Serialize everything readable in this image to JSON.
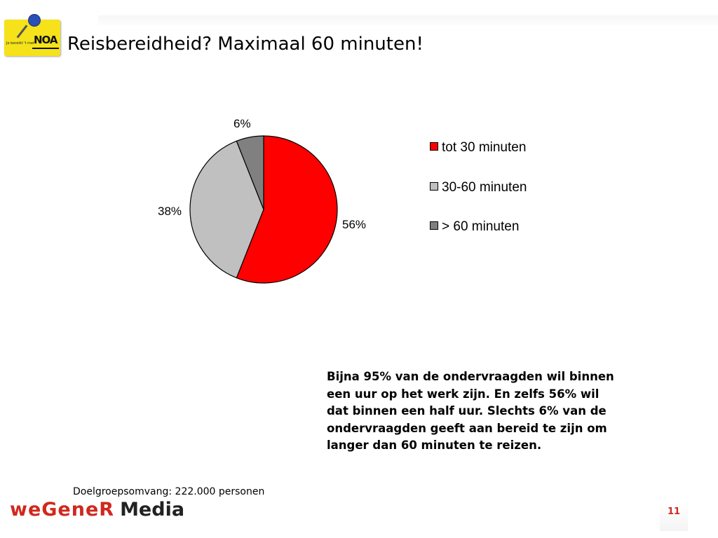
{
  "slide": {
    "title": "Reisbereidheid? Maximaal 60 minuten!",
    "note": "Bijna 95% van de ondervraagden wil binnen een uur op het werk zijn. En zelfs 56% wil dat binnen een half uur. Slechts 6% van de ondervraagden geeft aan bereid te zijn om langer dan 60 minuten te reizen.",
    "footer_note": "Doelgroepsomvang: 222.000 personen",
    "page_number": "11"
  },
  "logo": {
    "brand": "NOA",
    "tagline": "Je bereikt 't met"
  },
  "footer_logo": {
    "word1": "weGeneR",
    "word2": "Media"
  },
  "chart_data": {
    "type": "pie",
    "title": "",
    "categories": [
      "tot 30 minuten",
      "30-60 minuten",
      "> 60 minuten"
    ],
    "values": [
      56,
      38,
      6
    ],
    "labels": [
      "56%",
      "38%",
      "6%"
    ],
    "colors": [
      "#ff0000",
      "#c0c0c0",
      "#808080"
    ],
    "legend_position": "right",
    "start": "top",
    "direction": "clockwise"
  }
}
